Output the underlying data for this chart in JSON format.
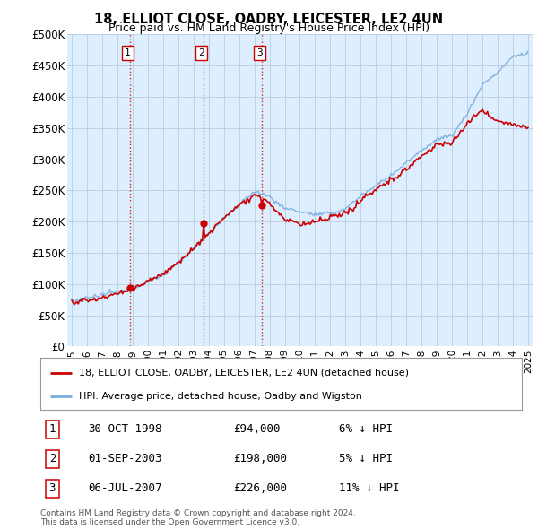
{
  "title": "18, ELLIOT CLOSE, OADBY, LEICESTER, LE2 4UN",
  "subtitle": "Price paid vs. HM Land Registry's House Price Index (HPI)",
  "ylabel_ticks": [
    "£0",
    "£50K",
    "£100K",
    "£150K",
    "£200K",
    "£250K",
    "£300K",
    "£350K",
    "£400K",
    "£450K",
    "£500K"
  ],
  "ytick_values": [
    0,
    50000,
    100000,
    150000,
    200000,
    250000,
    300000,
    350000,
    400000,
    450000,
    500000
  ],
  "xlim": [
    1994.7,
    2025.3
  ],
  "ylim": [
    0,
    500000
  ],
  "sale_dates": [
    1998.83,
    2003.67,
    2007.5
  ],
  "sale_prices": [
    94000,
    198000,
    226000
  ],
  "sale_labels": [
    "1",
    "2",
    "3"
  ],
  "vline_color": "#cc0000",
  "vline_style": ":",
  "marker_color": "#cc0000",
  "red_line_color": "#cc0000",
  "blue_line_color": "#7aaddc",
  "chart_bg_color": "#ddeeff",
  "legend_red_label": "18, ELLIOT CLOSE, OADBY, LEICESTER, LE2 4UN (detached house)",
  "legend_blue_label": "HPI: Average price, detached house, Oadby and Wigston",
  "table_data": [
    [
      "1",
      "30-OCT-1998",
      "£94,000",
      "6% ↓ HPI"
    ],
    [
      "2",
      "01-SEP-2003",
      "£198,000",
      "5% ↓ HPI"
    ],
    [
      "3",
      "06-JUL-2007",
      "£226,000",
      "11% ↓ HPI"
    ]
  ],
  "footer": "Contains HM Land Registry data © Crown copyright and database right 2024.\nThis data is licensed under the Open Government Licence v3.0.",
  "bg_color": "#ffffff",
  "grid_color": "#bbccdd",
  "xtick_years": [
    1995,
    1996,
    1997,
    1998,
    1999,
    2000,
    2001,
    2002,
    2003,
    2004,
    2005,
    2006,
    2007,
    2008,
    2009,
    2010,
    2011,
    2012,
    2013,
    2014,
    2015,
    2016,
    2017,
    2018,
    2019,
    2020,
    2021,
    2022,
    2023,
    2024,
    2025
  ]
}
